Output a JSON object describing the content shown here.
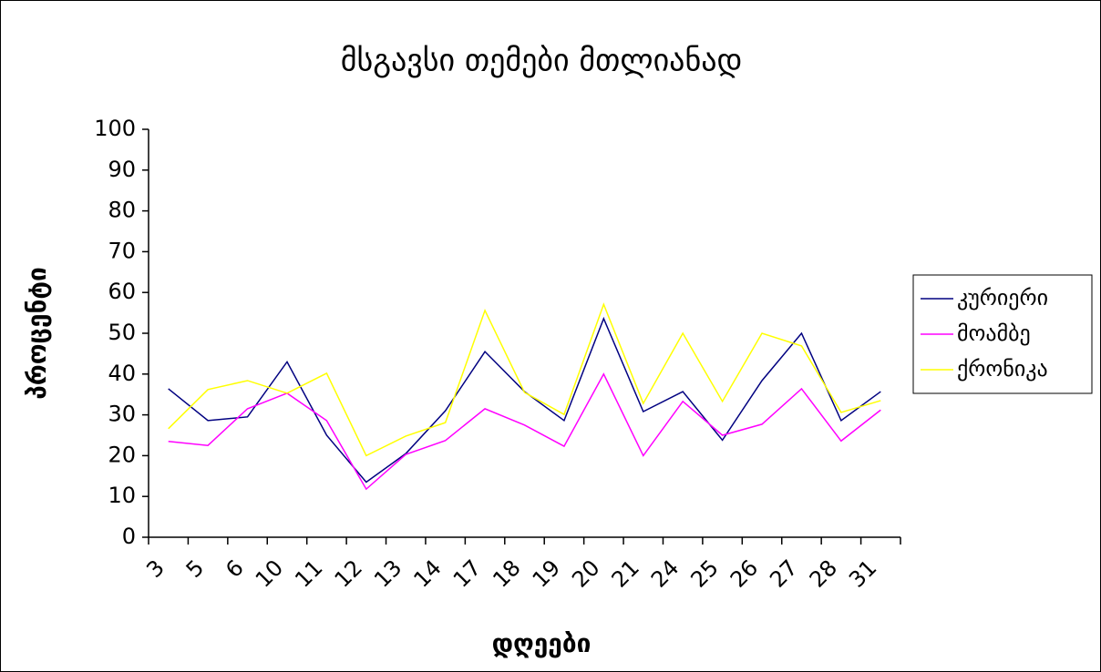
{
  "chart_data": {
    "type": "line",
    "title": "მსგავსი თემები მთლიანად",
    "x_label": "დღეები",
    "y_label": "პროცენტი",
    "categories": [
      "3",
      "5",
      "6",
      "10",
      "11",
      "12",
      "13",
      "14",
      "17",
      "18",
      "19",
      "20",
      "21",
      "24",
      "25",
      "26",
      "27",
      "28",
      "31"
    ],
    "series": [
      {
        "name": "კურიერი",
        "color": "#000080",
        "values": [
          36.4,
          28.6,
          29.5,
          43,
          25,
          13.5,
          20.5,
          31,
          45.5,
          35.7,
          28.6,
          53.6,
          30.8,
          35.7,
          23.8,
          38.4,
          50,
          28.6,
          35.7
        ]
      },
      {
        "name": "მოამბე",
        "color": "#ff00ff",
        "values": [
          23.5,
          22.5,
          31.5,
          35.3,
          28.6,
          11.8,
          20.3,
          23.7,
          31.5,
          27.5,
          22.3,
          40,
          20,
          33.3,
          25,
          27.7,
          36.4,
          23.6,
          31.2
        ]
      },
      {
        "name": "ქრონიკა",
        "color": "#ffff00",
        "values": [
          26.6,
          36.2,
          38.4,
          35.3,
          40.2,
          20,
          24.8,
          28.1,
          55.6,
          35.5,
          30.1,
          57.1,
          32.8,
          50,
          33.3,
          50,
          46.9,
          30.6,
          33.5
        ]
      }
    ],
    "ylim": [
      0,
      100
    ],
    "yticks": [
      0,
      10,
      20,
      30,
      40,
      50,
      60,
      70,
      80,
      90,
      100
    ],
    "legend": "right"
  }
}
